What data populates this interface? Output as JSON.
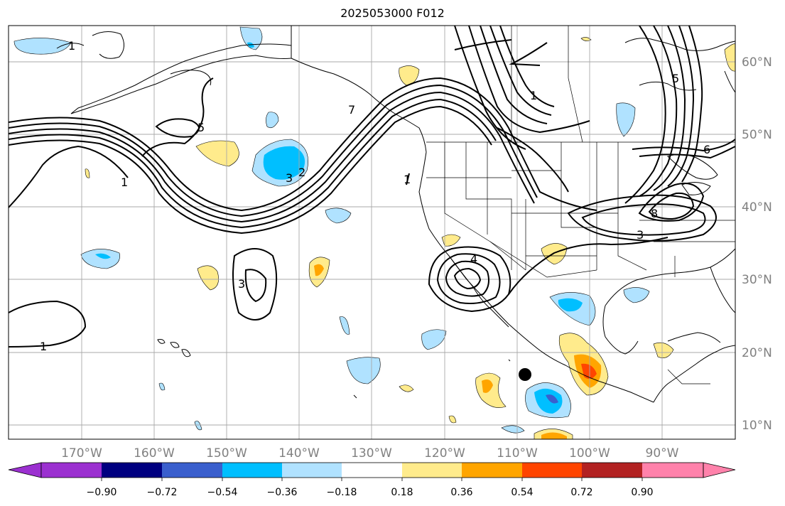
{
  "title": "2025053000 F012",
  "longitude_labels": [
    "170°W",
    "160°W",
    "150°W",
    "140°W",
    "130°W",
    "120°W",
    "110°W",
    "100°W",
    "90°W"
  ],
  "latitude_labels": [
    "60°N",
    "50°N",
    "40°N",
    "30°N",
    "20°N",
    "10°N"
  ],
  "colorbar": {
    "tick_labels": [
      "−0.90",
      "−0.72",
      "−0.54",
      "−0.36",
      "−0.18",
      "0.18",
      "0.36",
      "0.54",
      "0.72",
      "0.90"
    ],
    "colors": [
      "#9b30d0",
      "#000080",
      "#3a5fcd",
      "#00bfff",
      "#b0e2ff",
      "#ffffff",
      "#ffeb8c",
      "#ffa500",
      "#ff4500",
      "#b22222",
      "#ff82ab"
    ]
  },
  "contour_labels": [
    "5",
    "1",
    "3",
    "1",
    "3",
    "4",
    "7",
    "5",
    "1",
    "6",
    "8",
    "3",
    "1",
    "2",
    "1"
  ],
  "colors": {
    "line": "#000000",
    "grid": "#a9a9a9",
    "coast": "#000000"
  }
}
